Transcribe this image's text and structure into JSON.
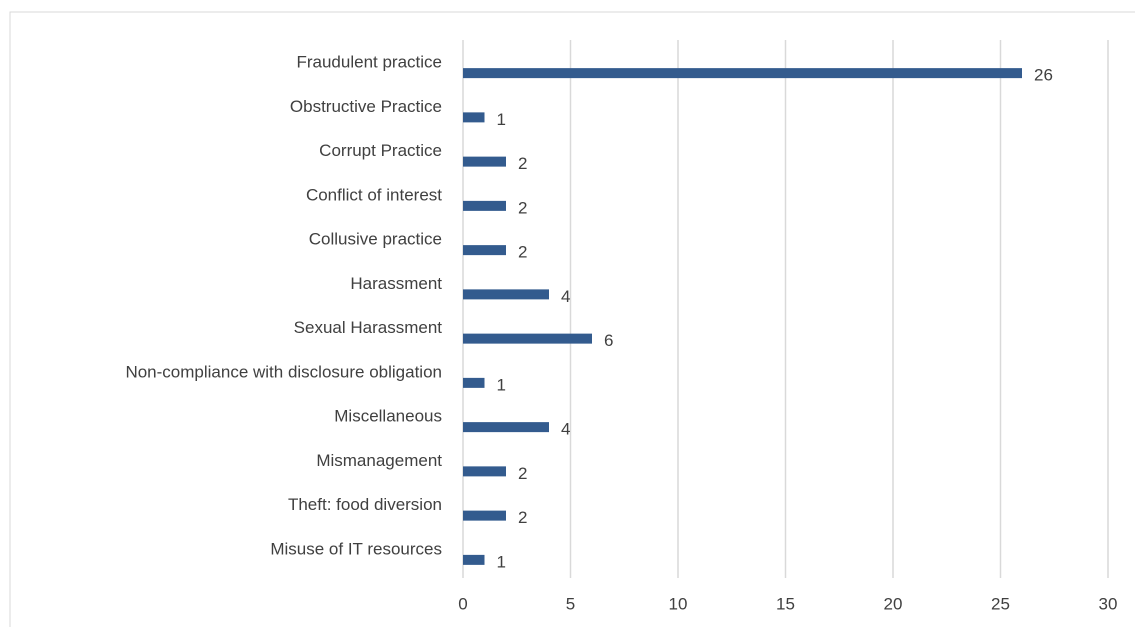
{
  "chart_data": {
    "type": "bar",
    "orientation": "horizontal",
    "categories": [
      "Fraudulent practice",
      "Obstructive Practice",
      "Corrupt Practice",
      "Conflict of interest",
      "Collusive practice",
      "Harassment",
      "Sexual Harassment",
      "Non-compliance with disclosure obligation",
      "Miscellaneous",
      "Mismanagement",
      "Theft: food diversion",
      "Misuse of IT resources"
    ],
    "values": [
      26,
      1,
      2,
      2,
      2,
      4,
      6,
      1,
      4,
      2,
      2,
      1
    ],
    "color": "#335b8e",
    "xlim": [
      0,
      30
    ],
    "xticks": [
      0,
      5,
      10,
      15,
      20,
      25,
      30
    ],
    "grid": true
  }
}
